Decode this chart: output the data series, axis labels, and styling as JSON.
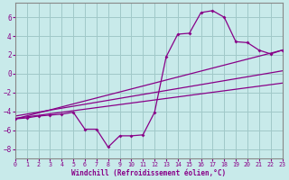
{
  "background_color": "#c8eaea",
  "grid_color": "#a0c8c8",
  "line_color": "#880088",
  "xlim": [
    0,
    23
  ],
  "ylim": [
    -9,
    7.5
  ],
  "xlabel": "Windchill (Refroidissement éolien,°C)",
  "xticks": [
    0,
    1,
    2,
    3,
    4,
    5,
    6,
    7,
    8,
    9,
    10,
    11,
    12,
    13,
    14,
    15,
    16,
    17,
    18,
    19,
    20,
    21,
    22,
    23
  ],
  "yticks": [
    -8,
    -6,
    -4,
    -2,
    0,
    2,
    4,
    6
  ],
  "main_x": [
    0,
    1,
    2,
    3,
    4,
    5,
    6,
    7,
    8,
    9,
    10,
    11,
    12,
    13,
    14,
    15,
    16,
    17,
    18,
    19,
    20,
    21,
    22,
    23
  ],
  "main_y": [
    -4.8,
    -4.7,
    -4.5,
    -4.4,
    -4.3,
    -4.1,
    -5.9,
    -5.9,
    -7.8,
    -6.6,
    -6.6,
    -6.5,
    -4.1,
    1.8,
    4.2,
    4.3,
    6.5,
    6.7,
    6.0,
    3.4,
    3.3,
    2.5,
    2.1,
    2.5
  ],
  "line1": [
    -4.8,
    2.5
  ],
  "line2": [
    -4.5,
    0.3
  ],
  "line3": [
    -4.75,
    -1.0
  ]
}
